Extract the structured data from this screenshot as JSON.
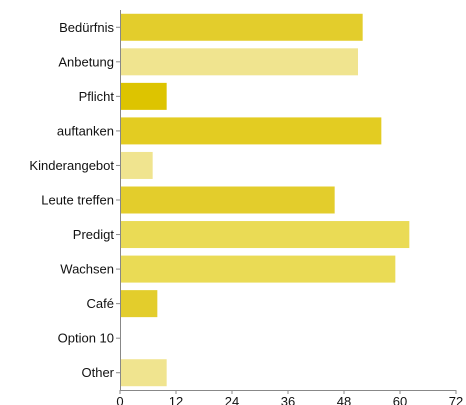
{
  "chart_data": {
    "type": "bar",
    "orientation": "horizontal",
    "categories": [
      "Bedürfnis",
      "Anbetung",
      "Pflicht",
      "auftanken",
      "Kinderangebot",
      "Leute treffen",
      "Predigt",
      "Wachsen",
      "Café",
      "Option 10",
      "Other"
    ],
    "values": [
      52,
      51,
      10,
      56,
      7,
      46,
      62,
      59,
      8,
      0,
      10
    ],
    "bar_colors": [
      "#E3CD2C",
      "#F0E48F",
      "#DDC400",
      "#E3CC22",
      "#F0E48F",
      "#E3CD2C",
      "#EADB55",
      "#EADB55",
      "#E3CD2C",
      "#E3CD2C",
      "#F0E48F"
    ],
    "xlim": [
      0,
      72
    ],
    "xticks": [
      "0",
      "12",
      "24",
      "36",
      "48",
      "60",
      "72"
    ],
    "title": "",
    "xlabel": "",
    "ylabel": "",
    "grid": false,
    "legend": "none"
  }
}
